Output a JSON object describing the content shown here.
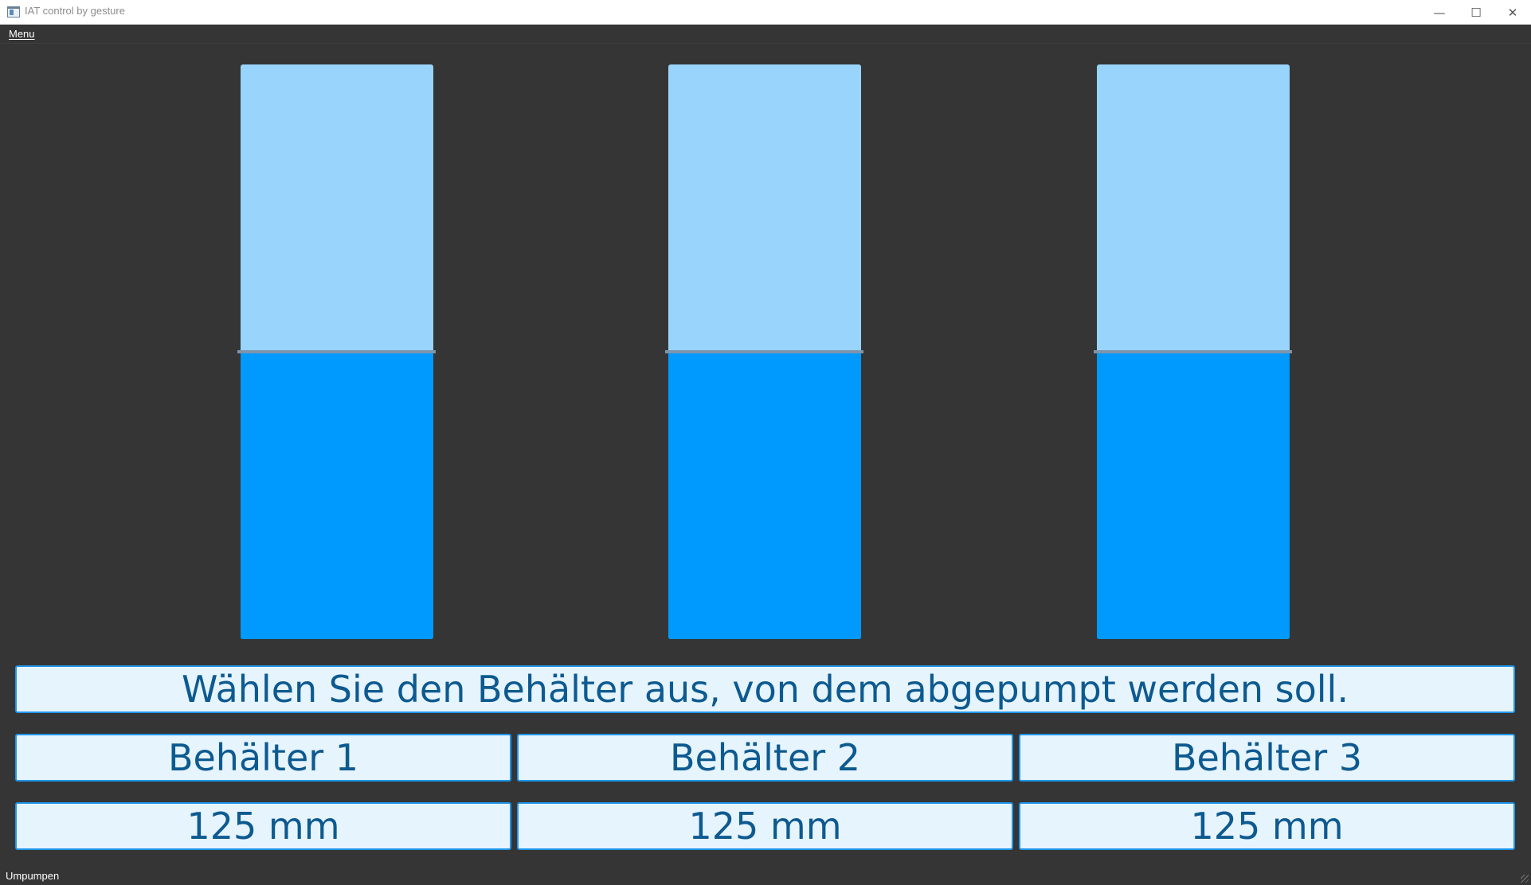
{
  "window": {
    "title": "IAT control by gesture",
    "minimize_icon": "minimize-icon",
    "maximize_icon": "maximize-icon",
    "close_icon": "close-icon",
    "minimize_glyph": "—",
    "maximize_glyph": "☐",
    "close_glyph": "✕"
  },
  "menubar": {
    "menu_label": "Menu"
  },
  "tanks": [
    {
      "label": "Behälter 1",
      "value": "125 mm",
      "fill_fraction": 0.5
    },
    {
      "label": "Behälter 2",
      "value": "125 mm",
      "fill_fraction": 0.5
    },
    {
      "label": "Behälter 3",
      "value": "125 mm",
      "fill_fraction": 0.5
    }
  ],
  "instruction": "Wählen Sie den Behälter aus, von dem abgepumpt werden soll.",
  "statusbar": {
    "text": "Umpumpen"
  },
  "colors": {
    "background": "#353535",
    "tank_empty": "#99d4fd",
    "tank_fill": "#0099fd",
    "level_line": "#7e95ab",
    "panel_bg": "#e6f4fd",
    "panel_border": "#1f96ea",
    "panel_text": "#0d5a90"
  }
}
